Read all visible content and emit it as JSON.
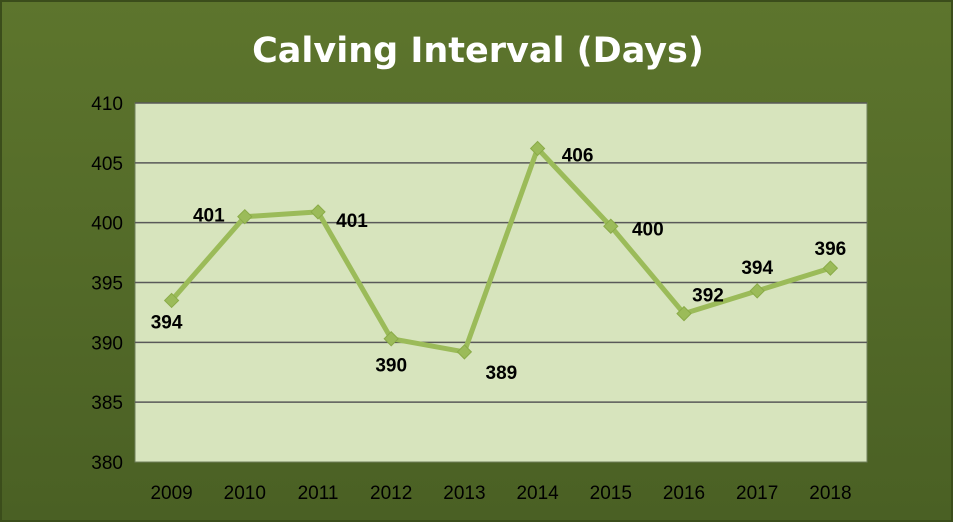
{
  "colors": {
    "background": "#556b2a",
    "plot_area": "#d7e4bd",
    "line": "#9bbb59",
    "gridline": "#595959"
  },
  "chart_data": {
    "type": "line",
    "title": "Calving Interval (Days)",
    "xlabel": "",
    "ylabel": "",
    "categories": [
      "2009",
      "2010",
      "2011",
      "2012",
      "2013",
      "2014",
      "2015",
      "2016",
      "2017",
      "2018"
    ],
    "values": [
      393.5,
      400.5,
      400.9,
      390.3,
      389.2,
      406.2,
      399.7,
      392.4,
      394.3,
      396.2
    ],
    "data_labels": [
      "394",
      "401",
      "401",
      "390",
      "389",
      "406",
      "400",
      "392",
      "394",
      "396"
    ],
    "ylim": [
      380,
      410
    ],
    "yticks": [
      "380",
      "385",
      "390",
      "395",
      "400",
      "405",
      "410"
    ],
    "grid": true,
    "legend": "none",
    "marker": "diamond"
  }
}
